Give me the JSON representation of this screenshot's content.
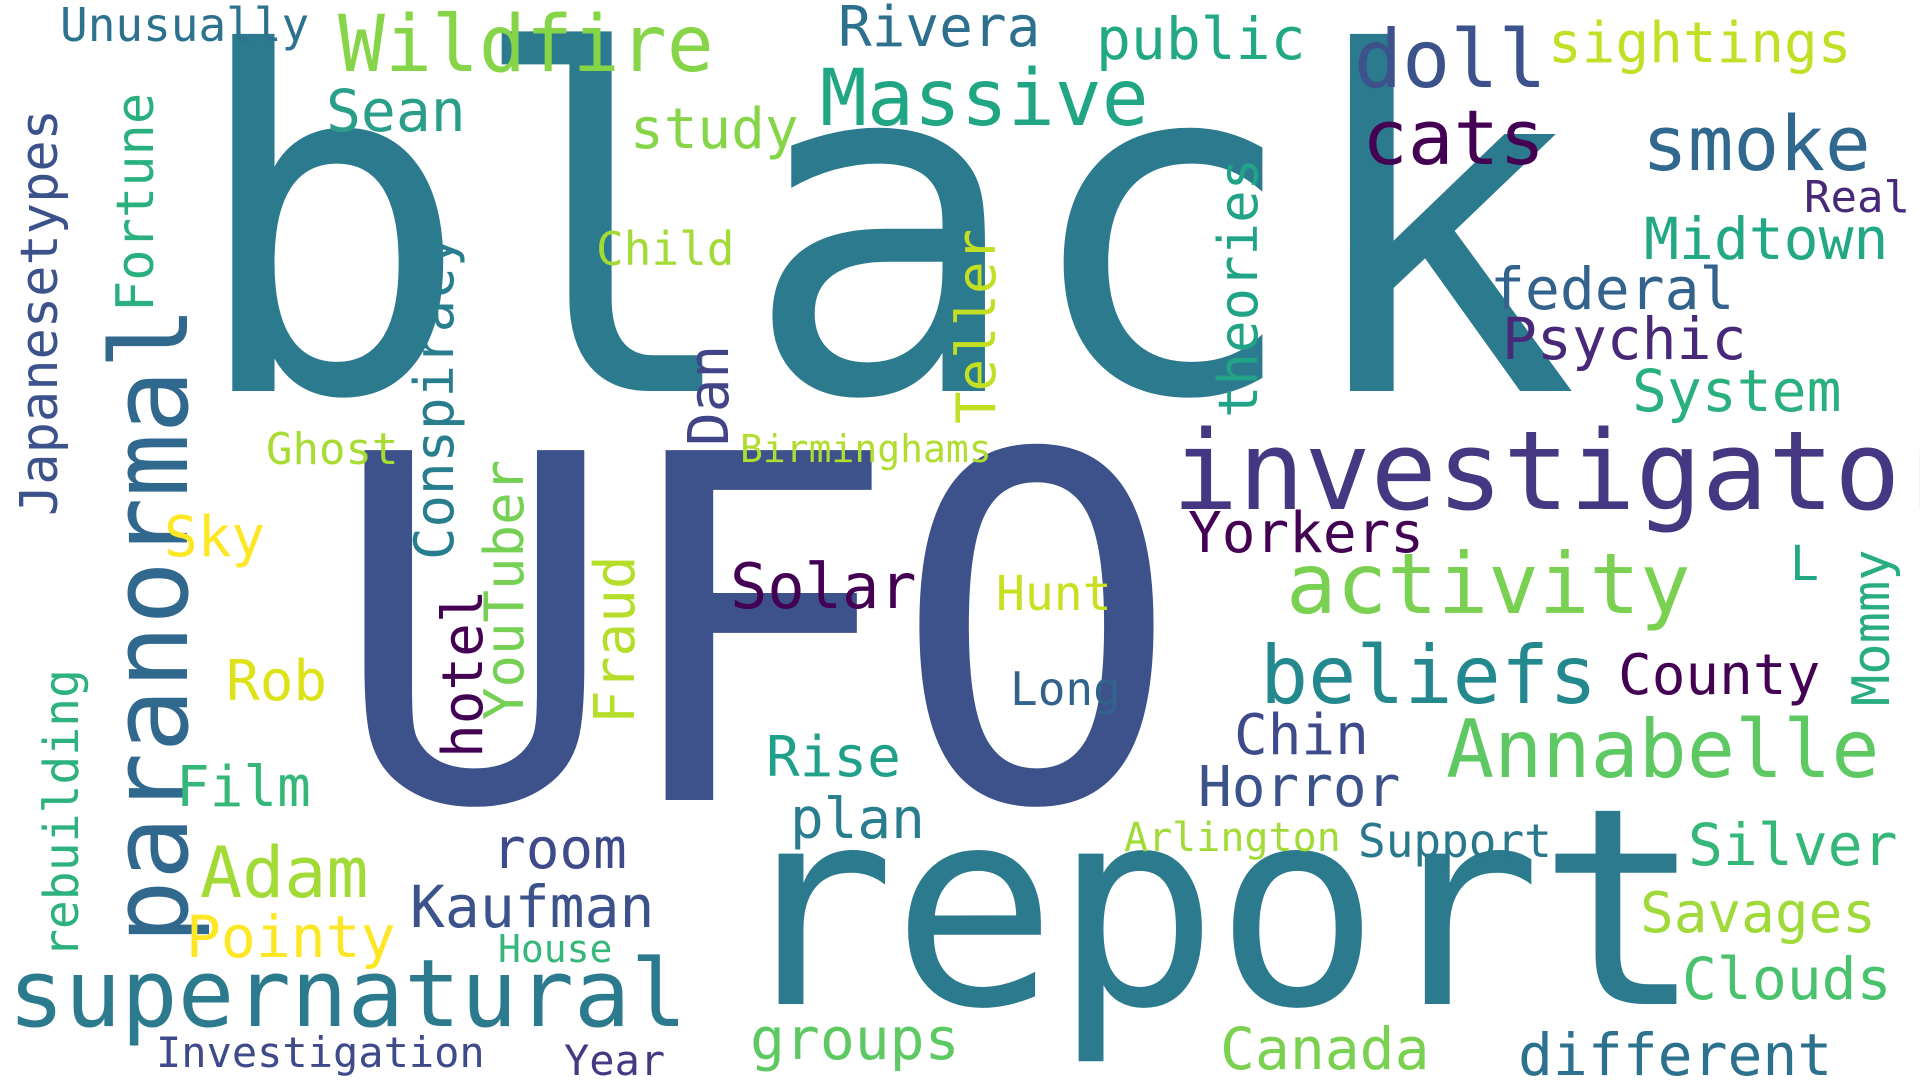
{
  "words": {
    "black": "black",
    "ufo": "UFO",
    "report": "report",
    "investigator": "investigator",
    "supernatural": "supernatural",
    "paranormal": "paranormal",
    "activity": "activity",
    "beliefs": "beliefs",
    "annabelle": "Annabelle",
    "massive": "Massive",
    "wildfire": "Wildfire",
    "doll": "doll",
    "cats": "cats",
    "smoke": "smoke",
    "adam": "Adam",
    "conspiracy": "Conspiracy",
    "theories": "theories",
    "teller": "Teller",
    "midtown": "Midtown",
    "federal": "federal",
    "psychic": "Psychic",
    "system": "System",
    "yorkers": "Yorkers",
    "county": "County",
    "mommy": "Mommy",
    "solar": "Solar",
    "fraud": "Fraud",
    "youtuber": "YouTuber",
    "hotel": "hotel",
    "dan": "Dan",
    "japanesetypes": "Japanesetypes",
    "fortune": "Fortune",
    "rebuilding": "rebuilding",
    "sky": "Sky",
    "rob": "Rob",
    "film": "Film",
    "pointy": "Pointy",
    "kaufman": "Kaufman",
    "room": "room",
    "rise": "Rise",
    "plan": "plan",
    "groups": "groups",
    "canada": "Canada",
    "different": "different",
    "clouds": "Clouds",
    "savages": "Savages",
    "silver": "Silver",
    "horror": "Horror",
    "chin": "Chin",
    "sightings": "sightings",
    "real": "Real",
    "public": "public",
    "rivera": "Rivera",
    "study": "study",
    "sean": "Sean",
    "unusually": "Unusually",
    "child": "Child",
    "ghost": "Ghost",
    "birminghams": "Birminghams",
    "hunt": "Hunt",
    "long": "Long",
    "l": "L",
    "arlington": "Arlington",
    "support": "Support",
    "house": "House",
    "investigation": "Investigation",
    "year": "Year"
  }
}
